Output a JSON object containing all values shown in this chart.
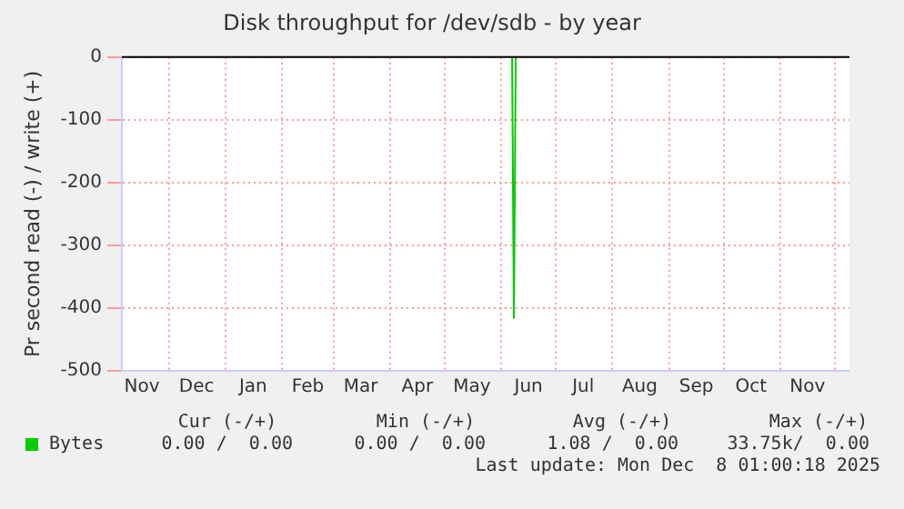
{
  "chart_data": {
    "type": "line",
    "title": "Disk throughput for /dev/sdb - by year",
    "ylabel": "Pr second read (-) / write (+)",
    "x": [
      "2025-06-07",
      "2025-06-08",
      "2025-06-09"
    ],
    "series": [
      {
        "name": "Bytes",
        "color": "#00cc00",
        "values": [
          0,
          -416,
          0
        ]
      }
    ],
    "xlim": [
      "2024-11-05",
      "2025-12-09"
    ],
    "xticks": [
      {
        "value": "2024-11-16",
        "label": "Nov"
      },
      {
        "value": "2024-12-01",
        "label": null
      },
      {
        "value": "2024-12-16",
        "label": "Dec"
      },
      {
        "value": "2025-01-01",
        "label": null
      },
      {
        "value": "2025-01-16",
        "label": "Jan"
      },
      {
        "value": "2025-02-01",
        "label": null
      },
      {
        "value": "2025-02-15",
        "label": "Feb"
      },
      {
        "value": "2025-03-01",
        "label": null
      },
      {
        "value": "2025-03-16",
        "label": "Mar"
      },
      {
        "value": "2025-04-01",
        "label": null
      },
      {
        "value": "2025-04-16",
        "label": "Apr"
      },
      {
        "value": "2025-05-01",
        "label": null
      },
      {
        "value": "2025-05-16",
        "label": "May"
      },
      {
        "value": "2025-06-01",
        "label": null
      },
      {
        "value": "2025-06-16",
        "label": "Jun"
      },
      {
        "value": "2025-07-01",
        "label": null
      },
      {
        "value": "2025-07-16",
        "label": "Jul"
      },
      {
        "value": "2025-08-01",
        "label": null
      },
      {
        "value": "2025-08-16",
        "label": "Aug"
      },
      {
        "value": "2025-09-01",
        "label": null
      },
      {
        "value": "2025-09-16",
        "label": "Sep"
      },
      {
        "value": "2025-10-01",
        "label": null
      },
      {
        "value": "2025-10-16",
        "label": "Oct"
      },
      {
        "value": "2025-11-01",
        "label": null
      },
      {
        "value": "2025-11-16",
        "label": "Nov"
      },
      {
        "value": "2025-12-01",
        "label": null
      }
    ],
    "ylim": [
      -500,
      0
    ],
    "yticks": [
      -500,
      -400,
      -300,
      -200,
      -100,
      0
    ],
    "ref_lines": [
      {
        "axis": "y",
        "value": 0,
        "color": "#000000"
      }
    ],
    "grid": true,
    "legend": "bottom",
    "marker": "none",
    "line_style": "solid",
    "annotations": [
      "Cur (-/+)",
      "Min (-/+)",
      "Avg (-/+)",
      "Max (-/+)",
      "0.00 /  0.00",
      "0.00 /  0.00",
      "1.08 /  0.00",
      "33.75k/  0.00",
      "Last update: Mon Dec  8 01:00:18 2025"
    ]
  }
}
